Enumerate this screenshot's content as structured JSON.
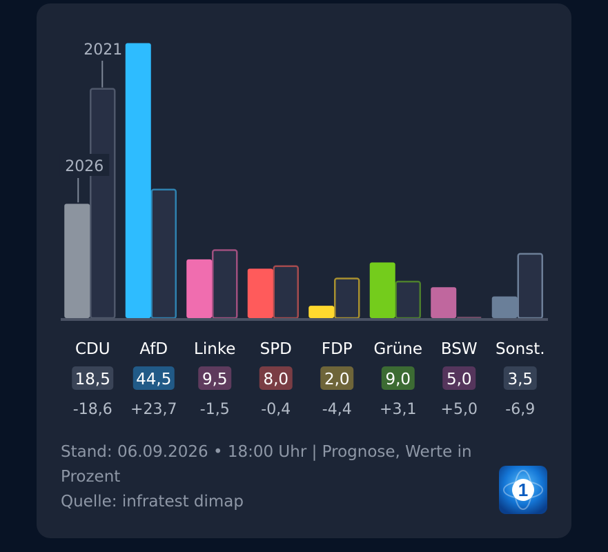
{
  "chart_data": {
    "type": "bar",
    "categories": [
      "CDU",
      "AfD",
      "Linke",
      "SPD",
      "FDP",
      "Grüne",
      "BSW",
      "Sonst."
    ],
    "series": [
      {
        "name": "2026",
        "values": [
          18.5,
          44.5,
          9.5,
          8.0,
          2.0,
          9.0,
          5.0,
          3.5
        ]
      },
      {
        "name": "2021",
        "values": [
          37.1,
          20.8,
          11.0,
          8.4,
          6.4,
          5.9,
          0.0,
          10.4
        ]
      }
    ],
    "value_labels": [
      "18,5",
      "44,5",
      "9,5",
      "8,0",
      "2,0",
      "9,0",
      "5,0",
      "3,5"
    ],
    "change_labels": [
      "-18,6",
      "+23,7",
      "-1,5",
      "-0,4",
      "-4,4",
      "+3,1",
      "+5,0",
      "-6,9"
    ],
    "party_colors": [
      "#8c949f",
      "#2ebcff",
      "#f06daf",
      "#ff5b5b",
      "#ffd92e",
      "#74cc1c",
      "#c0679e",
      "#6a7f99"
    ],
    "badge_colors": [
      "#3a4457",
      "#215a87",
      "#5e3b5d",
      "#7a3d44",
      "#6e6539",
      "#3c6b33",
      "#55355c",
      "#364256"
    ],
    "outline_colors": [
      "#4f586b",
      "#2f82b0",
      "#a0507f",
      "#a54b4e",
      "#a8902f",
      "#4d7f2c",
      "#6f4a66",
      "#6d7f98"
    ],
    "ylim": [
      0,
      45
    ],
    "annotations": {
      "current": "2026",
      "previous": "2021"
    }
  },
  "footer": {
    "line1": "Stand: 06.09.2026 • 18:00 Uhr | Prognose, Werte in",
    "line2": "Prozent",
    "line3": "Quelle: infratest dimap"
  },
  "logo": {
    "name": "das-erste-logo-icon",
    "glyph": "1"
  }
}
